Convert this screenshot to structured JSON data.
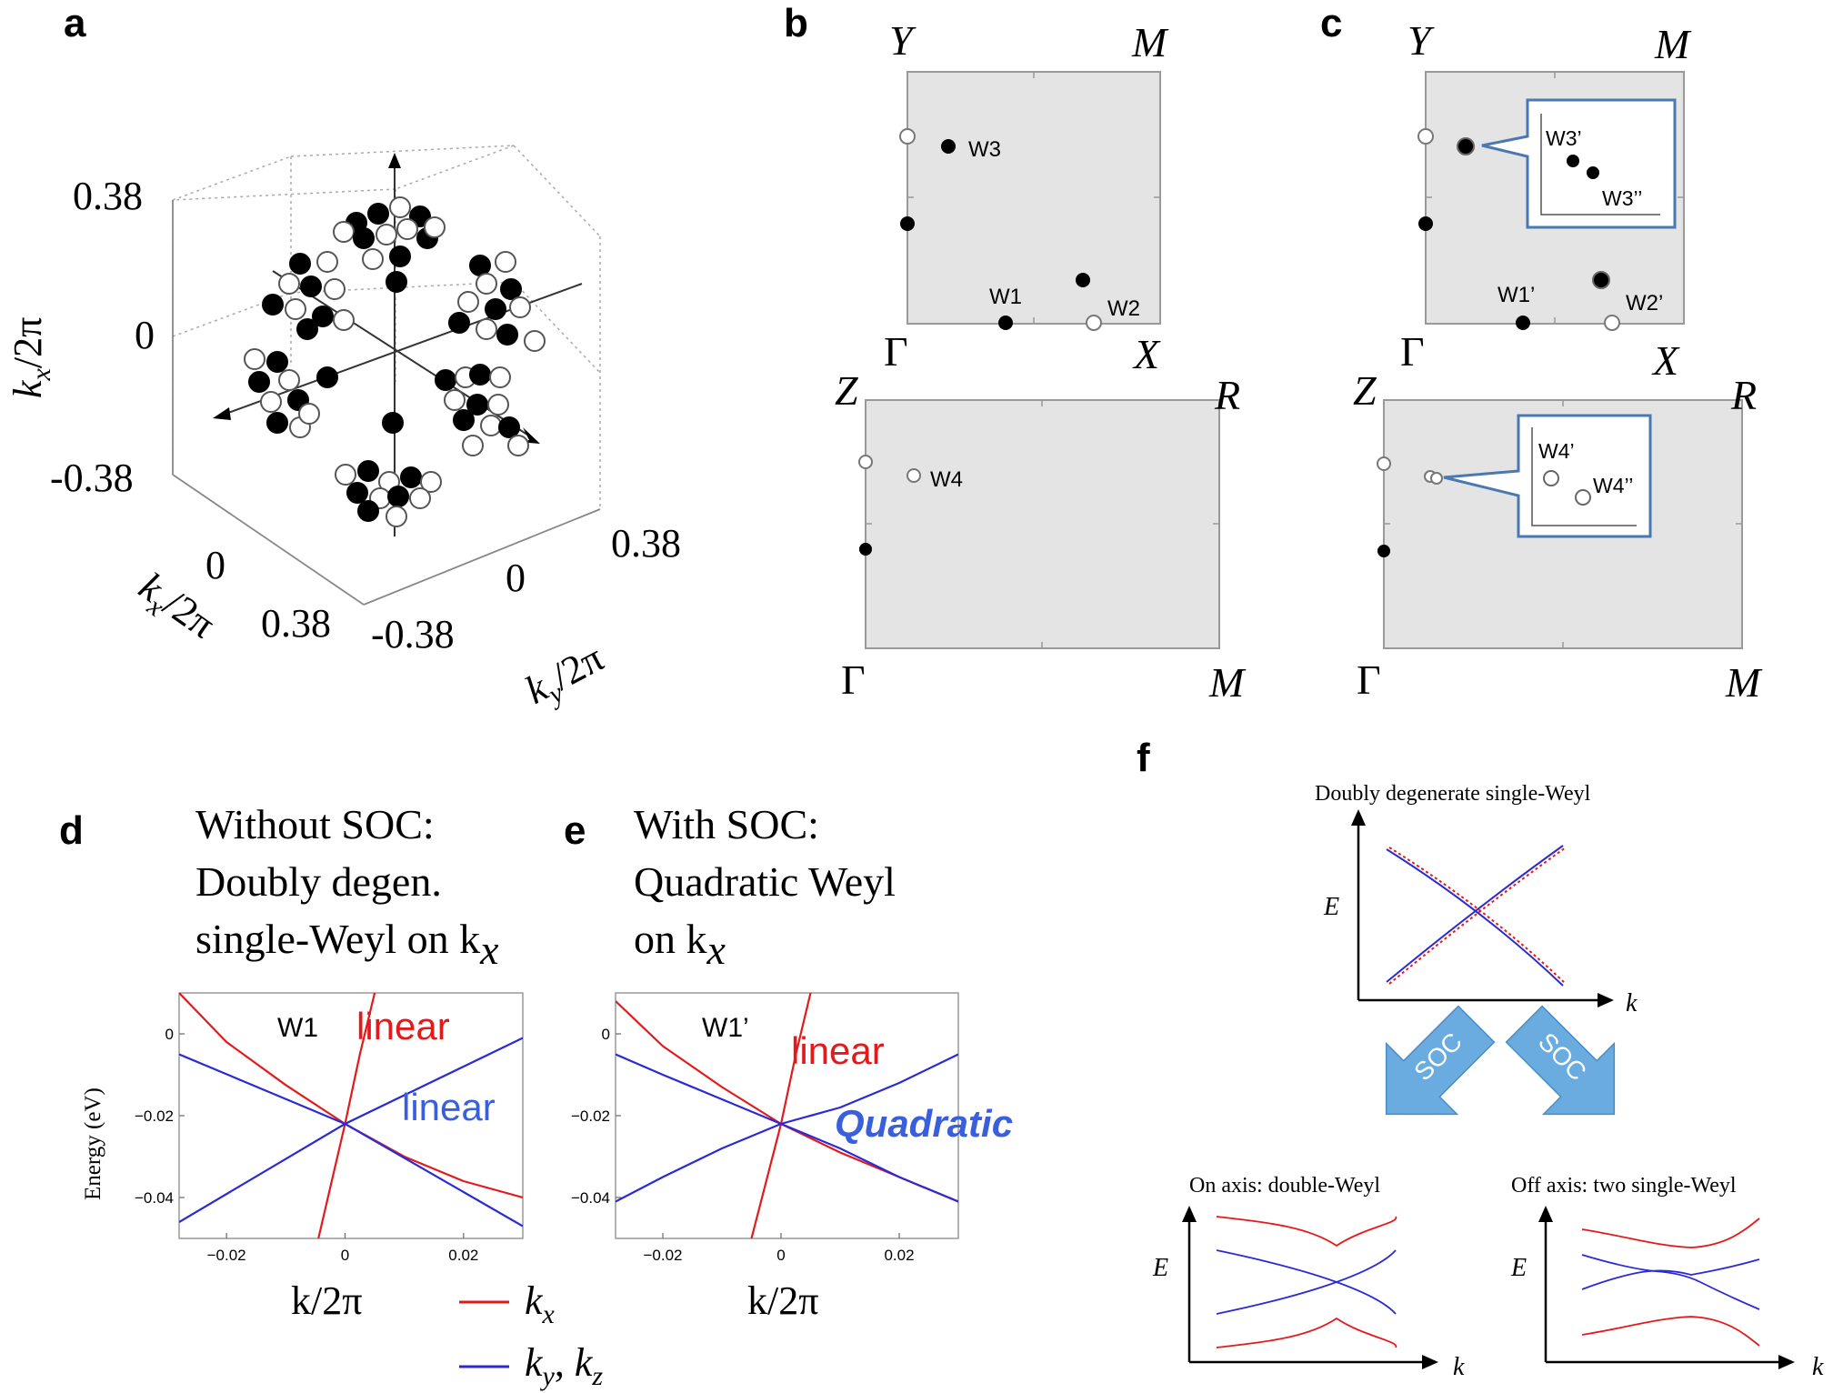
{
  "panels": {
    "a": {
      "letter": "a",
      "tick_038": "0.38",
      "tick_0": "0",
      "tick_m038": "-0.38",
      "axis_kx": "k",
      "axis_ky": "k",
      "sub_x": "x",
      "sub_y": "y",
      "over_2pi": "/2π"
    },
    "b": {
      "letter": "b",
      "top": {
        "Y": "Y",
        "M": "M",
        "Gamma": "Γ",
        "X": "X",
        "labels": [
          "W3",
          "W1",
          "W2"
        ]
      },
      "bottom": {
        "Z": "Z",
        "R": "R",
        "Gamma": "Γ",
        "M": "M",
        "labels": [
          "W4"
        ]
      }
    },
    "c": {
      "letter": "c",
      "top": {
        "Y": "Y",
        "M": "M",
        "Gamma": "Γ",
        "X": "X",
        "labels": [
          "W1’",
          "W2’"
        ],
        "inset": [
          "W3’",
          "W3’’"
        ]
      },
      "bottom": {
        "Z": "Z",
        "R": "R",
        "Gamma": "Γ",
        "M": "M",
        "inset": [
          "W4’",
          "W4’’"
        ]
      }
    },
    "d": {
      "letter": "d",
      "title": [
        "Without SOC:",
        "Doubly degen.",
        "single-Weyl on k"
      ],
      "title_sub": "x",
      "point": "W1",
      "red_label": "linear",
      "blue_label": "linear",
      "ylabel": "Energy (eV)",
      "xlabel": "k/2π"
    },
    "e": {
      "letter": "e",
      "title": [
        "With SOC:",
        "Quadratic Weyl",
        "on k"
      ],
      "title_sub": "x",
      "point": "W1’",
      "red_label": "linear",
      "blue_label": "Quadratic",
      "xlabel": "k/2π"
    },
    "legend": {
      "red": "k",
      "red_sub": "x",
      "blue_a": "k",
      "blue_a_sub": "y",
      "sep": ", ",
      "blue_b": "k",
      "blue_b_sub": "z"
    },
    "f": {
      "letter": "f",
      "top_title": "Doubly degenerate single-Weyl",
      "E": "E",
      "k": "k",
      "soc": "SOC",
      "left_title": "On axis: double-Weyl",
      "right_title": "Off axis: two single-Weyl"
    }
  },
  "colors": {
    "red": "#e31a1c",
    "blue": "#2b2bd6",
    "panel_gray": "#e4e4e4",
    "callout": "#4a78b0",
    "arrow_fill": "#6aacdf",
    "quadratic_text": "#3a5fdc"
  },
  "chart_data": [
    {
      "type": "line",
      "panel": "d",
      "title": "",
      "xlabel": "k/2π",
      "ylabel": "Energy (eV)",
      "xlim": [
        -0.028,
        0.03
      ],
      "ylim": [
        -0.05,
        0.01
      ],
      "xticks": [
        -0.02,
        0,
        0.02
      ],
      "yticks": [
        0,
        -0.02,
        -0.04
      ],
      "series": [
        {
          "name": "kx",
          "color": "red",
          "x": [
            -0.028,
            -0.02,
            -0.01,
            0,
            0.01,
            0.02,
            0.03
          ],
          "y": [
            0.01,
            -0.002,
            -0.0125,
            -0.022,
            -0.03,
            -0.036,
            -0.04
          ]
        },
        {
          "name": "kx",
          "color": "red",
          "x": [
            -0.0045,
            0,
            0.0025,
            0.005,
            0.008
          ],
          "y": [
            -0.05,
            -0.022,
            -0.005,
            0.01,
            0.03
          ]
        },
        {
          "name": "ky, kz",
          "color": "blue",
          "x": [
            -0.028,
            0,
            0.03
          ],
          "y": [
            -0.005,
            -0.022,
            -0.047
          ]
        },
        {
          "name": "ky, kz",
          "color": "blue",
          "x": [
            -0.028,
            0,
            0.03
          ],
          "y": [
            -0.046,
            -0.022,
            -0.001
          ]
        }
      ]
    },
    {
      "type": "line",
      "panel": "e",
      "title": "",
      "xlabel": "k/2π",
      "ylabel": "",
      "xlim": [
        -0.028,
        0.03
      ],
      "ylim": [
        -0.05,
        0.01
      ],
      "xticks": [
        -0.02,
        0,
        0.02
      ],
      "yticks": [
        0,
        -0.02,
        -0.04
      ],
      "series": [
        {
          "name": "kx",
          "color": "red",
          "x": [
            -0.028,
            -0.02,
            -0.01,
            0,
            0.01,
            0.02,
            0.03
          ],
          "y": [
            0.008,
            -0.003,
            -0.013,
            -0.022,
            -0.029,
            -0.035,
            -0.041
          ]
        },
        {
          "name": "kx",
          "color": "red",
          "x": [
            -0.005,
            0,
            0.0025,
            0.005,
            0.008
          ],
          "y": [
            -0.05,
            -0.022,
            -0.005,
            0.01,
            0.03
          ]
        },
        {
          "name": "ky, kz",
          "color": "blue",
          "x": [
            -0.028,
            -0.02,
            -0.01,
            0,
            0.01,
            0.02,
            0.03
          ],
          "y": [
            -0.041,
            -0.035,
            -0.028,
            -0.022,
            -0.018,
            -0.012,
            -0.005
          ]
        },
        {
          "name": "ky, kz",
          "color": "blue",
          "x": [
            -0.028,
            -0.02,
            -0.01,
            0,
            0.01,
            0.02,
            0.03
          ],
          "y": [
            -0.005,
            -0.01,
            -0.016,
            -0.022,
            -0.028,
            -0.035,
            -0.041
          ]
        }
      ]
    }
  ]
}
